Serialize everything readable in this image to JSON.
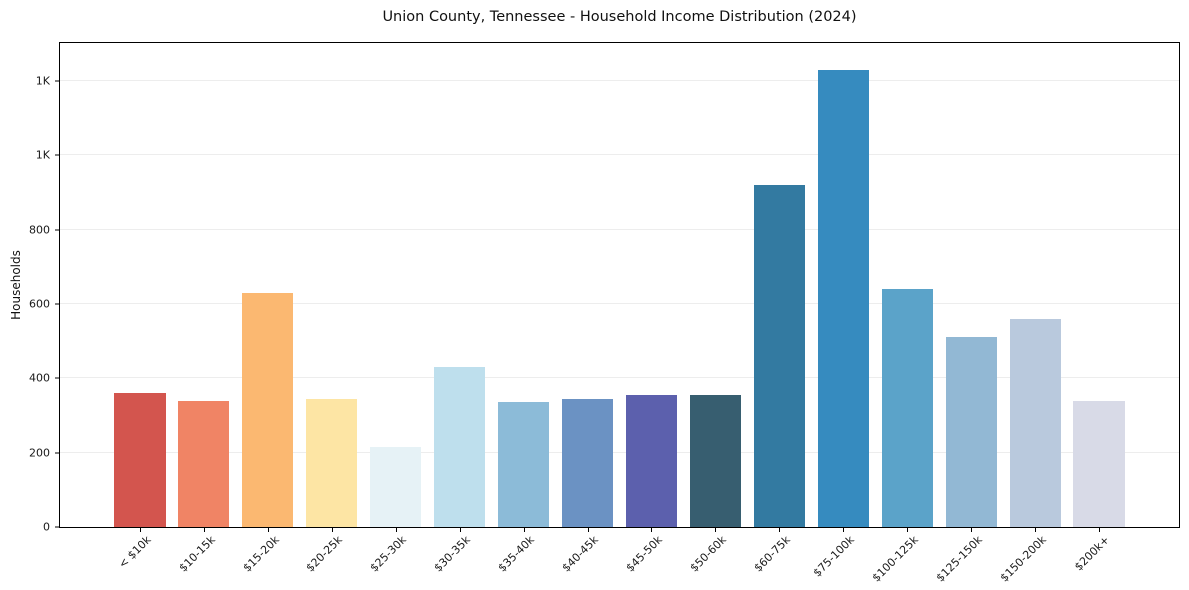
{
  "chart_data": {
    "type": "bar",
    "title": "Union County, Tennessee - Household Income Distribution (2024)",
    "xlabel": "",
    "ylabel": "Households",
    "categories": [
      "< $10k",
      "$10-15k",
      "$15-20k",
      "$20-25k",
      "$25-30k",
      "$30-35k",
      "$35-40k",
      "$40-45k",
      "$45-50k",
      "$50-60k",
      "$60-75k",
      "$75-100k",
      "$100-125k",
      "$125-150k",
      "$150-200k",
      "$200k+"
    ],
    "values": [
      360,
      340,
      630,
      345,
      215,
      430,
      335,
      345,
      355,
      355,
      920,
      1230,
      640,
      510,
      560,
      340
    ],
    "bar_colors": [
      "#d3554e",
      "#f08465",
      "#fbb871",
      "#fde5a4",
      "#e6f2f6",
      "#bedfed",
      "#8cbbd8",
      "#6b92c3",
      "#5c60ad",
      "#375e70",
      "#337aa1",
      "#368bbf",
      "#5ba3c9",
      "#92b8d4",
      "#b9c9dd",
      "#d8dae7"
    ],
    "ylim": [
      0,
      1302
    ],
    "yticks": [
      {
        "value": 0,
        "label": "0"
      },
      {
        "value": 200,
        "label": "200"
      },
      {
        "value": 400,
        "label": "400"
      },
      {
        "value": 600,
        "label": "600"
      },
      {
        "value": 800,
        "label": "800"
      },
      {
        "value": 1000,
        "label": "1K"
      },
      {
        "value": 1200,
        "label": "1K"
      }
    ],
    "grid": true,
    "legend": false
  },
  "colors": {
    "background": "#ffffff",
    "plot_border": "#000000",
    "gridline": "#ededed",
    "tick_text": "#1a1a1a"
  }
}
